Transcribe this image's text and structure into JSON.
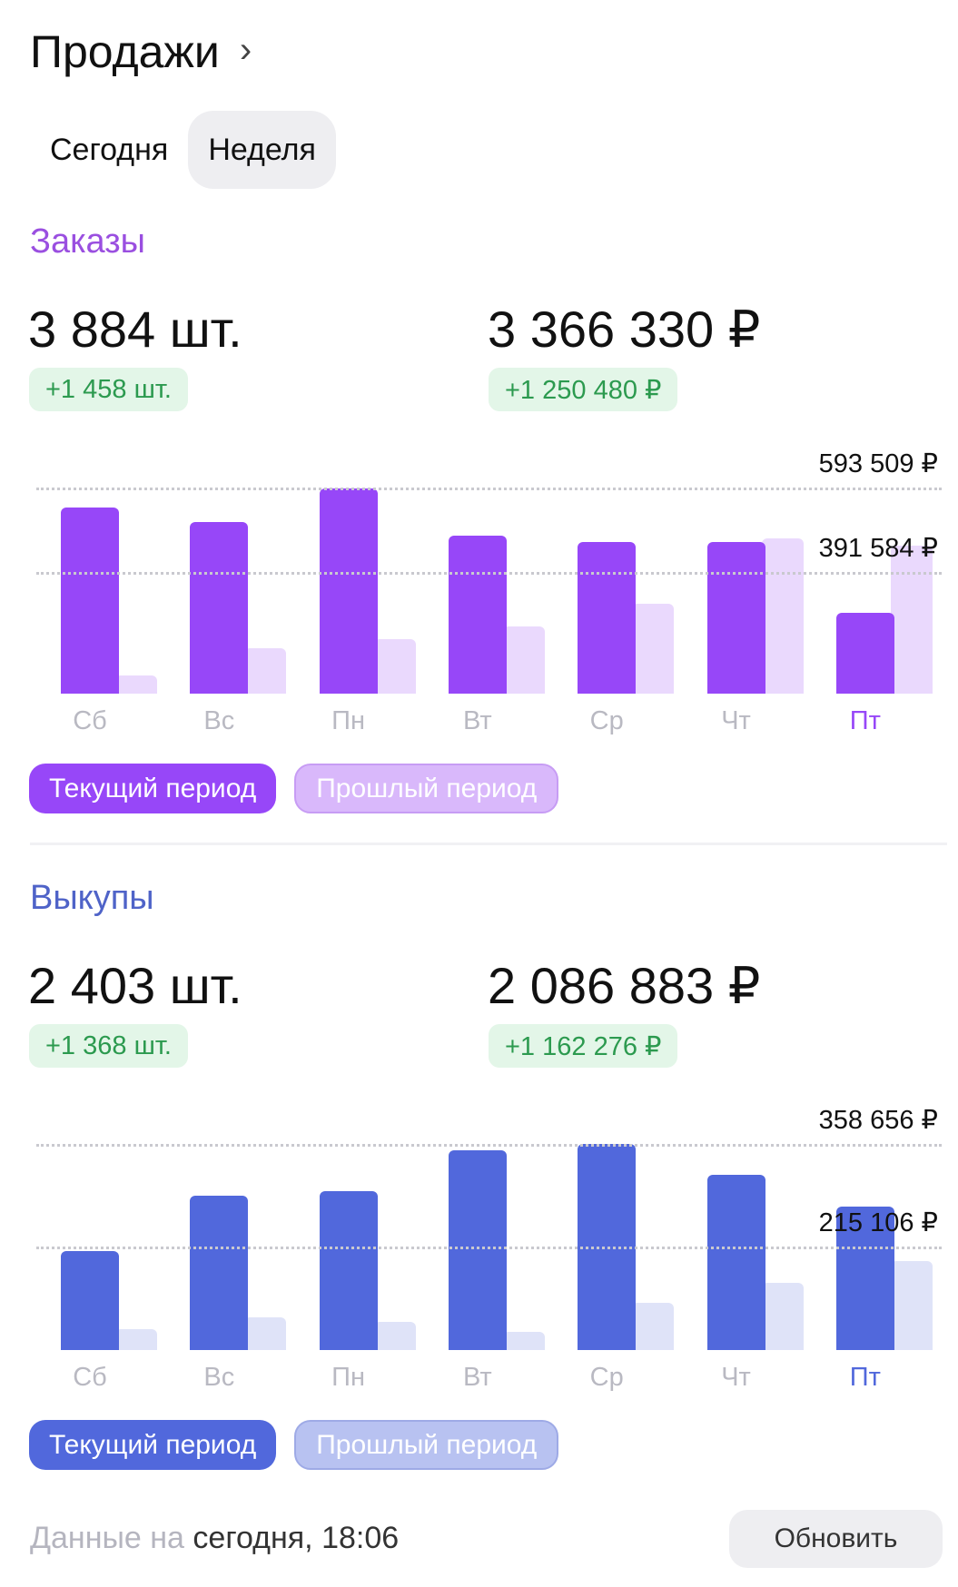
{
  "header": {
    "title": "Продажи",
    "chevron_icon": "chevron-right-icon"
  },
  "tabs": [
    {
      "label": "Сегодня",
      "active": false
    },
    {
      "label": "Неделя",
      "active": true
    }
  ],
  "sections": [
    {
      "title": "Заказы",
      "color": "#9747f8",
      "prev_color": "#ead9fd",
      "title_color": "#9a4fe0",
      "qty": "3 884 шт.",
      "qty_delta": "+1 458 шт.",
      "sum": "3 366 330 ₽",
      "sum_delta": "+1 250 480 ₽",
      "legend": {
        "current": "Текущий период",
        "previous": "Прошлый период",
        "prev_bg": "#d9b8fb",
        "prev_border": "#c79cf4"
      }
    },
    {
      "title": "Выкупы",
      "color": "#5168dc",
      "prev_color": "#dfe3f8",
      "title_color": "#4f63c8",
      "qty": "2 403 шт.",
      "qty_delta": "+1 368 шт.",
      "sum": "2 086 883 ₽",
      "sum_delta": "+1 162 276 ₽",
      "legend": {
        "current": "Текущий период",
        "previous": "Прошлый период",
        "prev_bg": "#b8c2f1",
        "prev_border": "#9eaae6"
      }
    }
  ],
  "chart_data": [
    {
      "type": "bar",
      "title": "Заказы",
      "categories": [
        "Сб",
        "Вс",
        "Пн",
        "Вт",
        "Ср",
        "Чт",
        "Пт"
      ],
      "series": [
        {
          "name": "Текущий период",
          "values": [
            545000,
            512000,
            591000,
            478000,
            464000,
            464000,
            295000
          ]
        },
        {
          "name": "Прошлый период",
          "values": [
            146000,
            211000,
            233000,
            262000,
            317000,
            473000,
            456000
          ]
        }
      ],
      "gridlines": [
        {
          "value": 593509,
          "label": "593 509 ₽"
        },
        {
          "value": 391584,
          "label": "391 584 ₽"
        }
      ],
      "ylim": [
        103000,
        593509
      ],
      "highlight_category": "Пт"
    },
    {
      "type": "bar",
      "title": "Выкупы",
      "categories": [
        "Сб",
        "Вс",
        "Пн",
        "Вт",
        "Ср",
        "Чт",
        "Пт"
      ],
      "series": [
        {
          "name": "Текущий период",
          "values": [
            209000,
            286000,
            292000,
            350000,
            358656,
            316000,
            271000
          ]
        },
        {
          "name": "Прошлый период",
          "values": [
            99000,
            116000,
            110000,
            96000,
            136000,
            164000,
            195000
          ]
        }
      ],
      "gridlines": [
        {
          "value": 358656,
          "label": "358 656 ₽"
        },
        {
          "value": 215106,
          "label": "215 106 ₽"
        }
      ],
      "ylim": [
        70000,
        358656
      ],
      "highlight_category": "Пт"
    }
  ],
  "footer": {
    "prefix": "Данные на",
    "timestamp": "сегодня, 18:06",
    "refresh_label": "Обновить"
  }
}
